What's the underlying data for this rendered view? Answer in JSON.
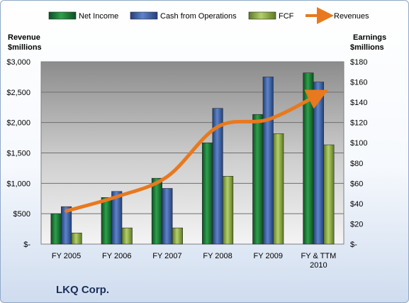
{
  "chart_data": {
    "type": "bar",
    "title": "LKQ Corp.",
    "categories": [
      "FY 2005",
      "FY 2006",
      "FY 2007",
      "FY 2008",
      "FY 2009",
      "FY & TTM|2010"
    ],
    "left_axis": {
      "label_line1": "Revenue",
      "label_line2": "$millions",
      "ylim": [
        0,
        3000
      ],
      "ticks": [
        "$-",
        "$500",
        "$1,000",
        "$1,500",
        "$2,000",
        "$2,500",
        "$3,000"
      ]
    },
    "right_axis": {
      "label_line1": "Earnings",
      "label_line2": "$millions",
      "ylim": [
        0,
        180
      ],
      "ticks": [
        "$-",
        "$20",
        "$40",
        "$60",
        "$80",
        "$100",
        "$120",
        "$140",
        "$160",
        "$180"
      ]
    },
    "series": [
      {
        "name": "Net Income",
        "axis": "right",
        "kind": "bar",
        "color": "#1e7d3a",
        "values": [
          30,
          46,
          65,
          100,
          128,
          169
        ]
      },
      {
        "name": "Cash from Operations",
        "axis": "right",
        "kind": "bar",
        "color": "#3d63a8",
        "values": [
          37,
          52,
          55,
          134,
          165,
          160
        ]
      },
      {
        "name": "FCF",
        "axis": "right",
        "kind": "bar",
        "color": "#8cab44",
        "values": [
          11,
          16,
          16,
          67,
          109,
          98
        ]
      },
      {
        "name": "Revenues",
        "axis": "left",
        "kind": "line",
        "color": "#e8791e",
        "values": [
          545,
          780,
          1110,
          1930,
          2050,
          2460
        ]
      }
    ],
    "legend_position": "top",
    "grid": true
  }
}
